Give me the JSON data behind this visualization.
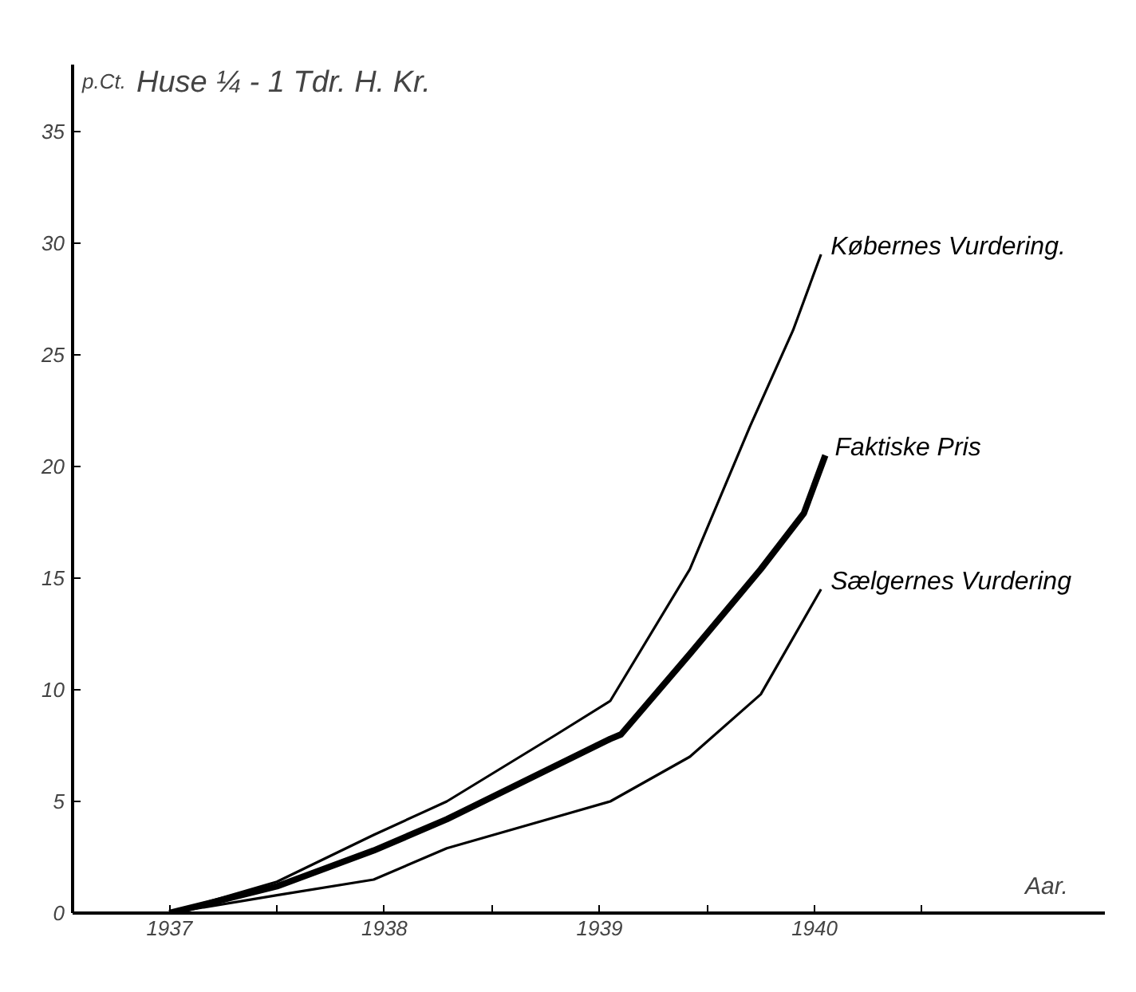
{
  "chart_data": {
    "type": "line",
    "title": "Huse ¼ - 1 Tdr. H. Kr.",
    "xlabel": "Aar.",
    "ylabel": "p.Ct.",
    "xlim": [
      1936.55,
      1941.35
    ],
    "ylim": [
      0,
      38
    ],
    "xticks": [
      1937,
      {
        "value": 1937.5,
        "label": null
      },
      1938,
      {
        "value": 1938.5,
        "label": null
      },
      1939,
      {
        "value": 1939.5,
        "label": null
      },
      1940,
      {
        "value": 1940.5,
        "label": null
      }
    ],
    "yticks": [
      0,
      5,
      10,
      15,
      20,
      25,
      30,
      35
    ],
    "grid": false,
    "marker": "none",
    "line_style": "solid",
    "series": [
      {
        "name": "Købernes Vurdering.",
        "color": "#000000",
        "x": [
          1937.0,
          1937.5,
          1937.95,
          1938.29,
          1938.8,
          1939.05,
          1939.42,
          1939.7,
          1939.9,
          1940.03
        ],
        "values": [
          0,
          1.4,
          3.5,
          5.0,
          8.0,
          9.5,
          15.4,
          21.8,
          26.1,
          29.5
        ]
      },
      {
        "name": "Faktiske Pris",
        "color": "#000000",
        "x": [
          1937.0,
          1937.5,
          1937.95,
          1938.29,
          1939.05,
          1939.1,
          1939.42,
          1939.75,
          1939.95,
          1940.05
        ],
        "values": [
          0,
          1.2,
          2.8,
          4.2,
          7.8,
          8.0,
          11.6,
          15.4,
          17.9,
          20.5
        ]
      },
      {
        "name": "Sælgernes Vurdering",
        "color": "#000000",
        "x": [
          1937.0,
          1937.5,
          1937.95,
          1938.29,
          1939.05,
          1939.42,
          1939.75,
          1940.03
        ],
        "values": [
          0,
          0.8,
          1.5,
          2.9,
          5.0,
          7.0,
          9.8,
          14.5
        ]
      }
    ]
  }
}
